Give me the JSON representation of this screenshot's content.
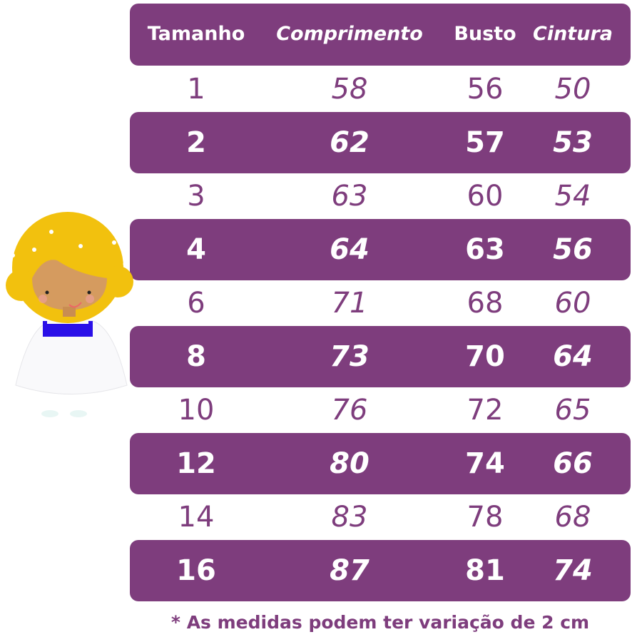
{
  "table": {
    "headers": [
      "Tamanho",
      "Comprimento",
      "Busto",
      "Cintura"
    ],
    "rows": [
      [
        "1",
        "58",
        "56",
        "50"
      ],
      [
        "2",
        "62",
        "57",
        "53"
      ],
      [
        "3",
        "63",
        "60",
        "54"
      ],
      [
        "4",
        "64",
        "63",
        "56"
      ],
      [
        "6",
        "71",
        "68",
        "60"
      ],
      [
        "8",
        "73",
        "70",
        "64"
      ],
      [
        "10",
        "76",
        "72",
        "65"
      ],
      [
        "12",
        "80",
        "74",
        "66"
      ],
      [
        "14",
        "83",
        "78",
        "68"
      ],
      [
        "16",
        "87",
        "81",
        "74"
      ]
    ]
  },
  "footnote": "* As medidas podem ter variação de 2 cm",
  "colors": {
    "accent": "#7e3d7d",
    "hair": "#f2c10e",
    "sash": "#2a10e8"
  },
  "illustration": "girl-in-white-dress"
}
